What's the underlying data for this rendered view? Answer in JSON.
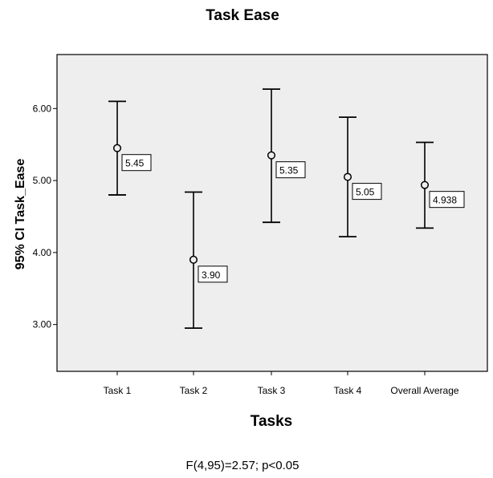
{
  "chart_data": {
    "type": "errorbar",
    "title": "Task Ease",
    "xlabel": "Tasks",
    "ylabel": "95% CI Task_Ease",
    "categories": [
      "Task 1",
      "Task 2",
      "Task 3",
      "Task 4",
      "Overall Average"
    ],
    "means": [
      5.45,
      3.9,
      5.35,
      5.05,
      4.938
    ],
    "ci_lower": [
      4.8,
      2.95,
      4.42,
      4.22,
      4.34
    ],
    "ci_upper": [
      6.1,
      4.84,
      6.27,
      5.88,
      5.53
    ],
    "data_labels": [
      "5.45",
      "3.90",
      "5.35",
      "5.05",
      "4.938"
    ],
    "ylim": [
      2.35,
      6.75
    ],
    "yticks": [
      3.0,
      4.0,
      5.0,
      6.0
    ],
    "ytick_labels": [
      "3.00",
      "4.00",
      "5.00",
      "6.00"
    ],
    "annotation": "F(4,95)=2.57; p<0.05",
    "colors": {
      "plot_bg": "#eeeeee",
      "marks": "#000000",
      "label_bg": "#ffffff"
    },
    "grid": false,
    "legend": "none"
  }
}
